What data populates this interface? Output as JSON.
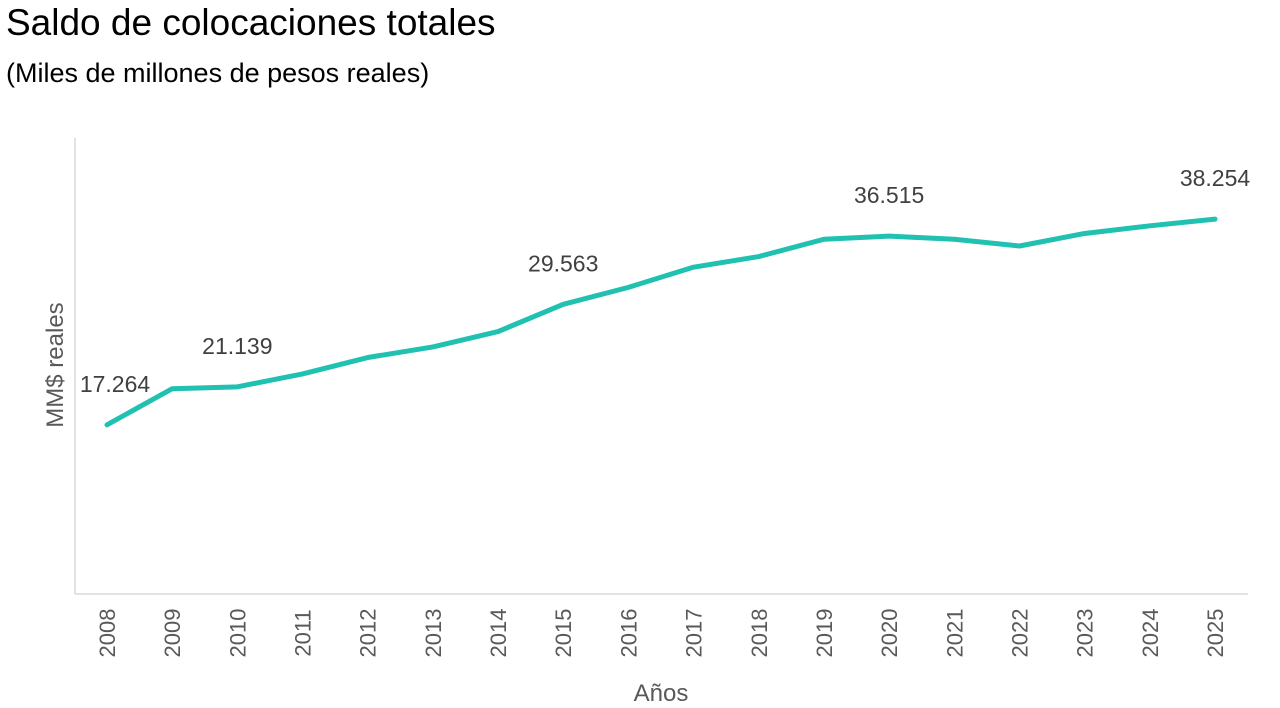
{
  "chart_data": {
    "type": "line",
    "title": "Saldo de colocaciones totales",
    "subtitle": "(Miles de millones de pesos reales)",
    "xlabel": "Años",
    "ylabel": "MM$ reales",
    "categories": [
      "2008",
      "2009",
      "2010",
      "2011",
      "2012",
      "2013",
      "2014",
      "2015",
      "2016",
      "2017",
      "2018",
      "2019",
      "2020",
      "2021",
      "2022",
      "2023",
      "2024",
      "2025"
    ],
    "series": [
      {
        "values": [
          17.264,
          20.95,
          21.139,
          22.46,
          24.13,
          25.21,
          26.78,
          29.563,
          31.29,
          33.35,
          34.43,
          36.2,
          36.515,
          36.2,
          35.51,
          36.79,
          37.57,
          38.254
        ],
        "color": "#20C1B0"
      }
    ],
    "data_labels": [
      {
        "category": "2008",
        "text": "17.264"
      },
      {
        "category": "2010",
        "text": "21.139"
      },
      {
        "category": "2015",
        "text": "29.563"
      },
      {
        "category": "2020",
        "text": "36.515"
      },
      {
        "category": "2025",
        "text": "38.254"
      }
    ],
    "ylim": [
      0,
      45
    ],
    "y_ticks_shown": false,
    "grid": false,
    "legend": "none"
  }
}
